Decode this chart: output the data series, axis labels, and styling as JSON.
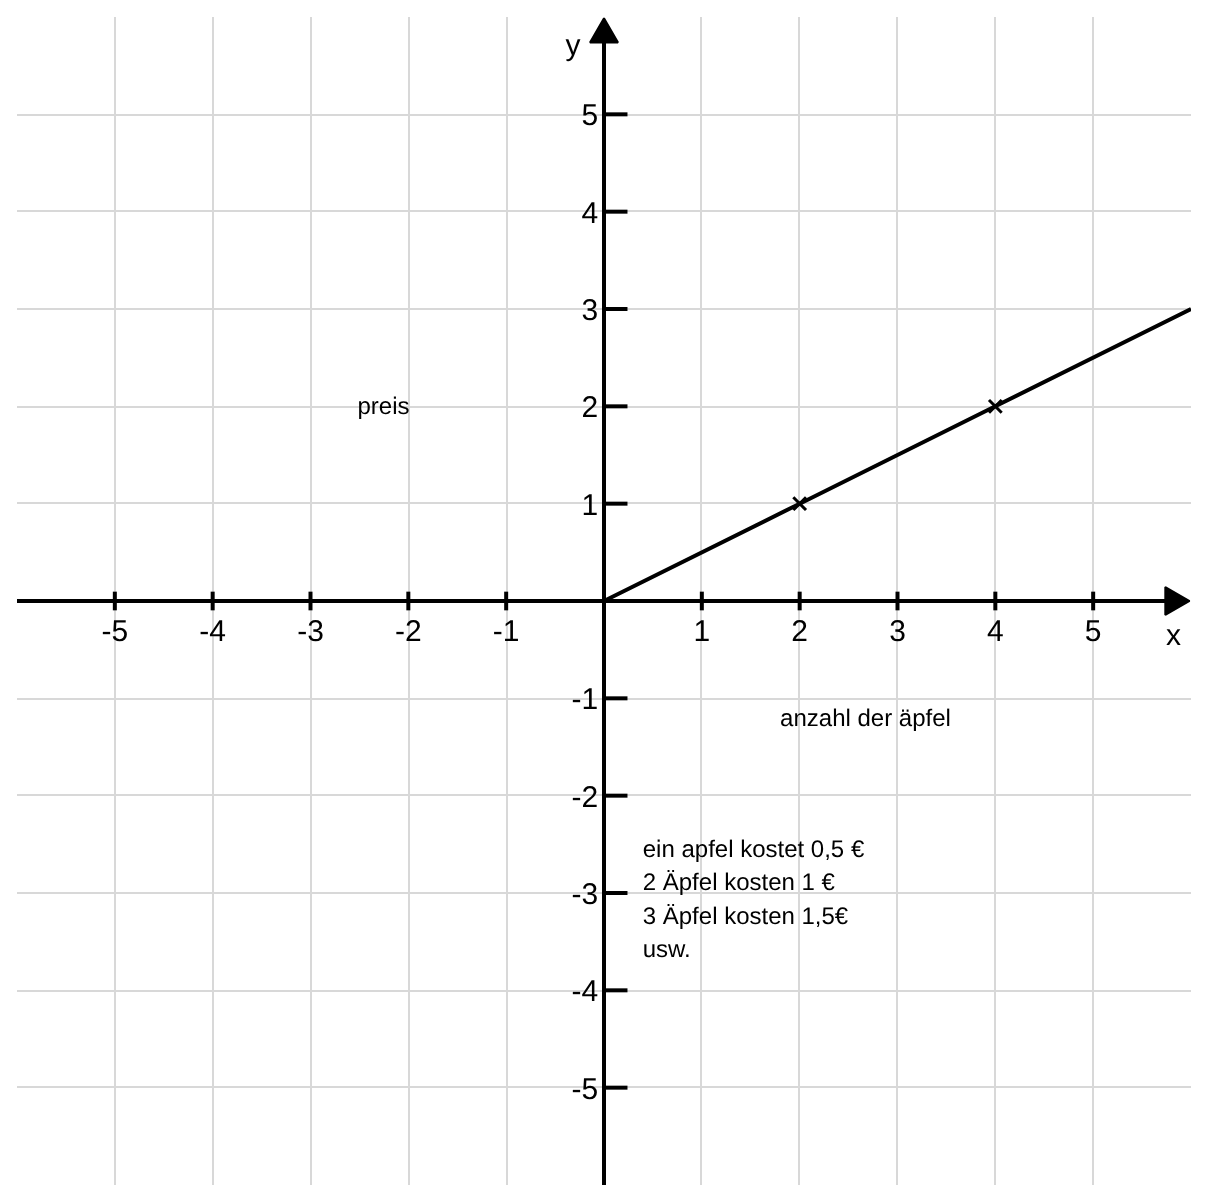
{
  "chart_data": {
    "type": "line",
    "xlabel": "x",
    "ylabel": "y",
    "xlim": [
      -6,
      6
    ],
    "ylim": [
      -6,
      6
    ],
    "xticks": [
      -5,
      -4,
      -3,
      -2,
      -1,
      1,
      2,
      3,
      4,
      5
    ],
    "yticks": [
      -5,
      -4,
      -3,
      -2,
      -1,
      1,
      2,
      3,
      4,
      5
    ],
    "grid": true,
    "series": [
      {
        "color": "#000000",
        "x": [
          0,
          2,
          4,
          6
        ],
        "values": [
          0,
          1,
          2,
          3
        ]
      },
      {
        "type": "scatter",
        "color": "#000000",
        "x": [
          2,
          4
        ],
        "values": [
          1,
          2
        ],
        "marker": "cross"
      }
    ],
    "annotations": [
      "preis",
      "anzahl der äpfel",
      "ein apfel kostet 0,5 €\n2 Äpfel kosten 1 €\n3 Äpfel kosten 1,5€\nusw."
    ]
  }
}
